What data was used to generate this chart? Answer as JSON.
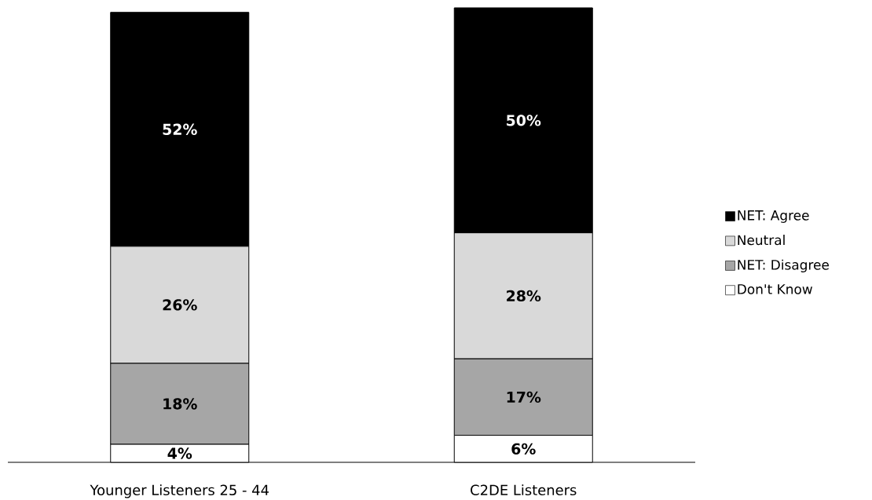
{
  "chart_data": {
    "type": "bar",
    "stacked": true,
    "categories": [
      "Younger Listeners 25 - 44",
      "C2DE Listeners"
    ],
    "series": [
      {
        "name": "Don't Know",
        "color": "#ffffff",
        "values": [
          4,
          6
        ],
        "value_labels": [
          "4%",
          "6%"
        ]
      },
      {
        "name": "NET: Disagree",
        "color": "#a6a6a6",
        "values": [
          18,
          17
        ],
        "value_labels": [
          "18%",
          "17%"
        ]
      },
      {
        "name": "Neutral",
        "color": "#d9d9d9",
        "values": [
          26,
          28
        ],
        "value_labels": [
          "26%",
          "28%"
        ]
      },
      {
        "name": "NET: Agree",
        "color": "#000000",
        "values": [
          52,
          50
        ],
        "value_labels": [
          "52%",
          "50%"
        ]
      }
    ],
    "tick_labels": "x",
    "legend": "right"
  }
}
